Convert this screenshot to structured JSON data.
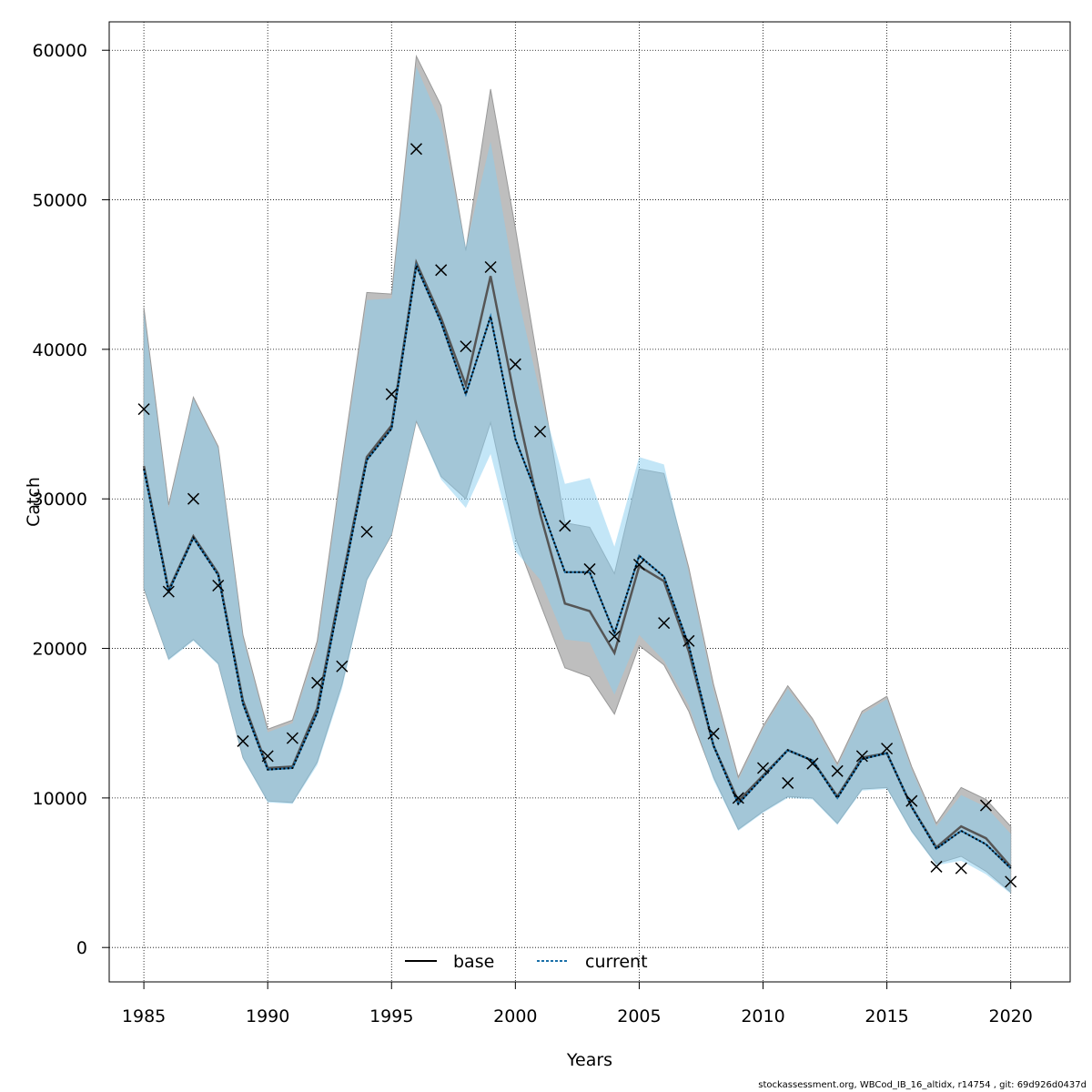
{
  "chart_data": {
    "type": "line",
    "xlabel": "Years",
    "ylabel": "Catch",
    "xlim": [
      1983.6,
      2022.4
    ],
    "ylim": [
      -2300,
      61900
    ],
    "x_ticks": [
      1985,
      1990,
      1995,
      2000,
      2005,
      2010,
      2015,
      2020
    ],
    "y_ticks": [
      0,
      10000,
      20000,
      30000,
      40000,
      50000,
      60000
    ],
    "grid": true,
    "legend_position": "bottom-center",
    "x": [
      1985,
      1986,
      1987,
      1988,
      1989,
      1990,
      1991,
      1992,
      1993,
      1994,
      1995,
      1996,
      1997,
      1998,
      1999,
      2000,
      2001,
      2002,
      2003,
      2004,
      2005,
      2006,
      2007,
      2008,
      2009,
      2010,
      2011,
      2012,
      2013,
      2014,
      2015,
      2016,
      2017,
      2018,
      2019,
      2020
    ],
    "series": [
      {
        "name": "base",
        "color": "#000000",
        "band_color": "#bebebe",
        "values": [
          32200,
          23900,
          27500,
          25000,
          16500,
          12000,
          12100,
          16000,
          24500,
          32800,
          34900,
          45800,
          42100,
          37600,
          44900,
          36500,
          29000,
          23000,
          22500,
          19700,
          25500,
          24500,
          19800,
          13500,
          9800,
          11500,
          13200,
          12500,
          10100,
          12700,
          13000,
          9400,
          6700,
          8100,
          7300,
          5400
        ],
        "lower": [
          24000,
          19300,
          20600,
          19000,
          12700,
          9800,
          9700,
          12400,
          17600,
          24600,
          27600,
          35200,
          31500,
          30000,
          35100,
          27400,
          23000,
          18700,
          18100,
          15600,
          20200,
          18900,
          15800,
          11400,
          7900,
          9100,
          10100,
          10000,
          8300,
          10600,
          10700,
          7800,
          5600,
          6100,
          5100,
          3700
        ],
        "upper": [
          42800,
          29600,
          36800,
          33500,
          20900,
          14600,
          15200,
          20500,
          32400,
          43800,
          43700,
          59600,
          56300,
          46600,
          57400,
          48100,
          38200,
          28400,
          28100,
          25000,
          32000,
          31700,
          25400,
          17600,
          11400,
          14800,
          17500,
          15300,
          12300,
          15800,
          16800,
          12100,
          8300,
          10700,
          9900,
          8100
        ]
      },
      {
        "name": "current",
        "color": "#1a6fa8",
        "band_color": "#87cef0",
        "values": [
          32000,
          23800,
          27400,
          24900,
          16300,
          11900,
          12000,
          15700,
          24200,
          32600,
          34700,
          45600,
          41800,
          37000,
          42200,
          34000,
          29700,
          25100,
          25100,
          21000,
          26200,
          24800,
          20200,
          13500,
          9600,
          11400,
          13200,
          12500,
          10000,
          12600,
          13000,
          9400,
          6600,
          7800,
          6900,
          5300
        ],
        "lower": [
          24000,
          19200,
          20500,
          18900,
          12600,
          9700,
          9600,
          12200,
          17300,
          24500,
          27600,
          35200,
          31300,
          29400,
          33000,
          26500,
          24600,
          20600,
          20400,
          16900,
          20900,
          19200,
          16200,
          11200,
          7800,
          9000,
          10000,
          9900,
          8200,
          10500,
          10600,
          7700,
          5500,
          5800,
          4900,
          3600
        ],
        "upper": [
          42500,
          29400,
          36700,
          33400,
          20700,
          14400,
          15000,
          20100,
          32000,
          43300,
          43400,
          58900,
          55100,
          46800,
          53900,
          44300,
          37000,
          31000,
          31400,
          26800,
          32800,
          32300,
          25100,
          17200,
          11200,
          14600,
          17300,
          15100,
          12100,
          15600,
          16600,
          11900,
          8100,
          10200,
          9400,
          7600
        ]
      }
    ],
    "observed": {
      "marker": "×",
      "values": [
        36000,
        23800,
        30000,
        24200,
        13800,
        12800,
        14000,
        17700,
        18800,
        27800,
        37000,
        53400,
        45300,
        40200,
        45500,
        39000,
        34500,
        28200,
        25300,
        20800,
        25600,
        21700,
        20500,
        14300,
        10000,
        12000,
        11000,
        12300,
        11800,
        12800,
        13300,
        9800,
        5400,
        5300,
        9500,
        4400
      ]
    }
  },
  "legend": {
    "base_label": "base",
    "current_label": "current"
  },
  "footer": {
    "text": "stockassessment.org, WBCod_IB_16_altidx, r14754 , git: 69d926d0437d"
  }
}
